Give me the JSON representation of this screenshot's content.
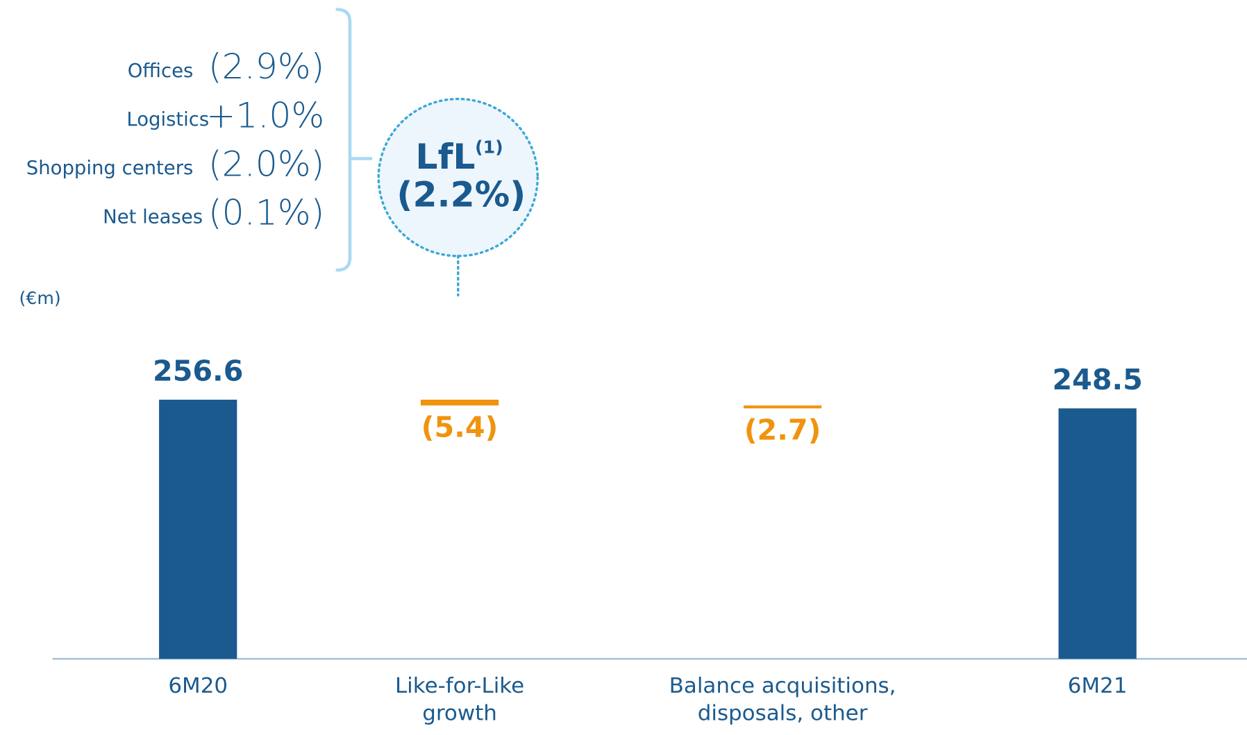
{
  "chart_data": {
    "type": "waterfall",
    "unit_label": "(€m)",
    "categories": [
      "6M20",
      "Like-for-Like growth",
      "Balance acquisitions, disposals, other",
      "6M21"
    ],
    "values": [
      256.6,
      -5.4,
      -2.7,
      248.5
    ],
    "value_labels": [
      "256.6",
      "(5.4)",
      "(2.7)",
      "248.5"
    ],
    "colors": [
      "#1a5a8e",
      "#f0930e",
      "#f0930e",
      "#1a5a8e"
    ],
    "ylim": [
      15,
      265
    ],
    "segments": [
      {
        "name": "Offices",
        "value": "(2.9%)"
      },
      {
        "name": "Logistics",
        "value": "+1.0%"
      },
      {
        "name": "Shopping centers",
        "value": "(2.0%)"
      },
      {
        "name": "Net leases",
        "value": "(0.1%)"
      }
    ],
    "lfl": {
      "label": "LfL",
      "note": "(1)",
      "value": "(2.2%)"
    }
  }
}
